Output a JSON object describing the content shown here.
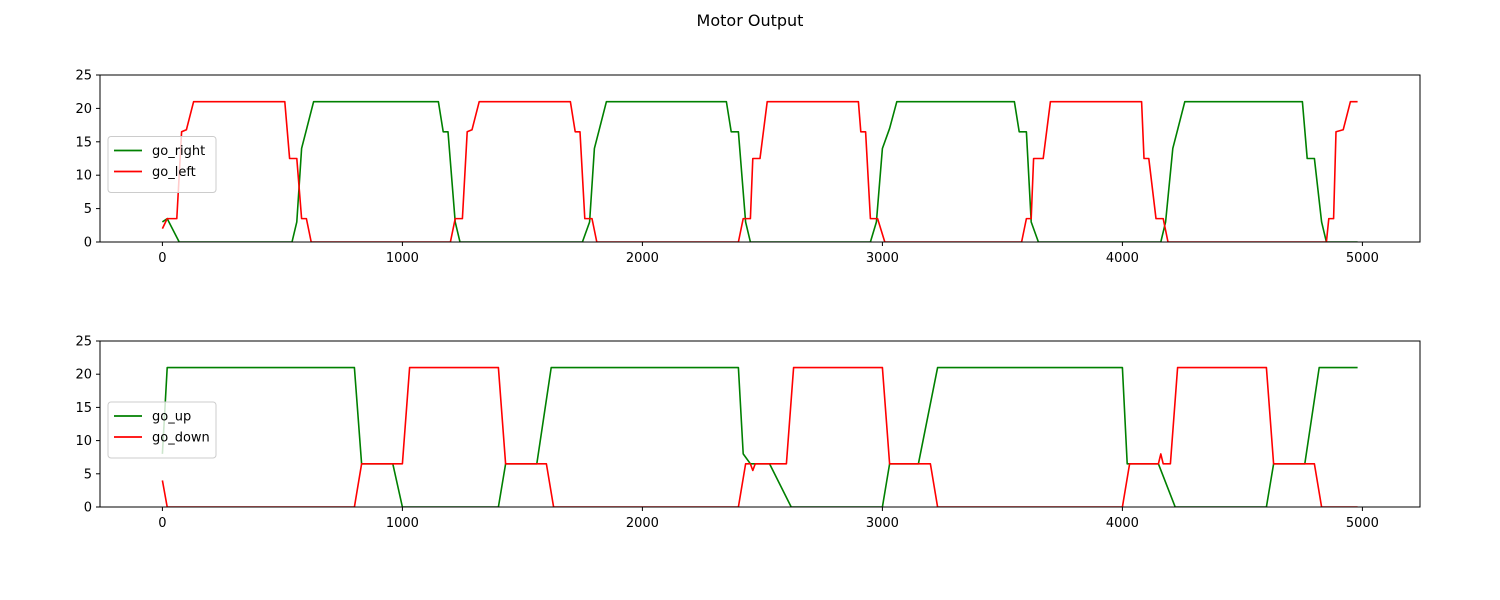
{
  "figure": {
    "title": "Motor Output"
  },
  "chart_data": [
    {
      "type": "line",
      "xlim": [
        -260,
        5240
      ],
      "ylim": [
        0,
        25
      ],
      "xticks": [
        0,
        1000,
        2000,
        3000,
        4000,
        5000
      ],
      "yticks": [
        0,
        5,
        10,
        15,
        20,
        25
      ],
      "legend_position": "center-left",
      "series": [
        {
          "name": "go_right",
          "color": "#008000",
          "points": [
            [
              0,
              3
            ],
            [
              20,
              3.5
            ],
            [
              70,
              0
            ],
            [
              540,
              0
            ],
            [
              560,
              3
            ],
            [
              580,
              14
            ],
            [
              600,
              16.8
            ],
            [
              630,
              21
            ],
            [
              1150,
              21
            ],
            [
              1170,
              16.5
            ],
            [
              1190,
              16.5
            ],
            [
              1220,
              3
            ],
            [
              1240,
              0
            ],
            [
              1750,
              0
            ],
            [
              1780,
              3
            ],
            [
              1800,
              14
            ],
            [
              1820,
              16.8
            ],
            [
              1850,
              21
            ],
            [
              2350,
              21
            ],
            [
              2370,
              16.5
            ],
            [
              2400,
              16.5
            ],
            [
              2430,
              3
            ],
            [
              2450,
              0
            ],
            [
              2950,
              0
            ],
            [
              2975,
              3
            ],
            [
              3000,
              14
            ],
            [
              3030,
              17
            ],
            [
              3060,
              21
            ],
            [
              3550,
              21
            ],
            [
              3570,
              16.5
            ],
            [
              3600,
              16.5
            ],
            [
              3620,
              3
            ],
            [
              3650,
              0
            ],
            [
              4160,
              0
            ],
            [
              4180,
              3
            ],
            [
              4210,
              14
            ],
            [
              4230,
              16.8
            ],
            [
              4260,
              21
            ],
            [
              4750,
              21
            ],
            [
              4770,
              12.5
            ],
            [
              4800,
              12.5
            ],
            [
              4830,
              3
            ],
            [
              4850,
              0
            ],
            [
              4980,
              0
            ]
          ]
        },
        {
          "name": "go_left",
          "color": "#ff0000",
          "points": [
            [
              0,
              2
            ],
            [
              20,
              3.5
            ],
            [
              60,
              3.5
            ],
            [
              80,
              16.5
            ],
            [
              100,
              16.8
            ],
            [
              130,
              21
            ],
            [
              510,
              21
            ],
            [
              530,
              12.5
            ],
            [
              560,
              12.5
            ],
            [
              580,
              3.5
            ],
            [
              600,
              3.5
            ],
            [
              620,
              0
            ],
            [
              1200,
              0
            ],
            [
              1220,
              3.5
            ],
            [
              1250,
              3.5
            ],
            [
              1270,
              16.5
            ],
            [
              1290,
              16.8
            ],
            [
              1320,
              21
            ],
            [
              1700,
              21
            ],
            [
              1720,
              16.5
            ],
            [
              1740,
              16.5
            ],
            [
              1760,
              3.5
            ],
            [
              1790,
              3.5
            ],
            [
              1810,
              0
            ],
            [
              2400,
              0
            ],
            [
              2420,
              3.5
            ],
            [
              2450,
              3.5
            ],
            [
              2460,
              12.5
            ],
            [
              2490,
              12.5
            ],
            [
              2520,
              21
            ],
            [
              2900,
              21
            ],
            [
              2910,
              16.5
            ],
            [
              2930,
              16.5
            ],
            [
              2950,
              3.5
            ],
            [
              2980,
              3.5
            ],
            [
              3010,
              0
            ],
            [
              3580,
              0
            ],
            [
              3600,
              3.5
            ],
            [
              3620,
              3.5
            ],
            [
              3630,
              12.5
            ],
            [
              3670,
              12.5
            ],
            [
              3700,
              21
            ],
            [
              4080,
              21
            ],
            [
              4090,
              12.5
            ],
            [
              4110,
              12.5
            ],
            [
              4140,
              3.5
            ],
            [
              4170,
              3.5
            ],
            [
              4190,
              0
            ],
            [
              4850,
              0
            ],
            [
              4860,
              3.5
            ],
            [
              4880,
              3.5
            ],
            [
              4890,
              16.5
            ],
            [
              4920,
              16.8
            ],
            [
              4950,
              21
            ],
            [
              4980,
              21
            ]
          ]
        }
      ]
    },
    {
      "type": "line",
      "xlim": [
        -260,
        5240
      ],
      "ylim": [
        0,
        25
      ],
      "xticks": [
        0,
        1000,
        2000,
        3000,
        4000,
        5000
      ],
      "yticks": [
        0,
        5,
        10,
        15,
        20,
        25
      ],
      "legend_position": "center-left",
      "series": [
        {
          "name": "go_up",
          "color": "#008000",
          "points": [
            [
              0,
              8
            ],
            [
              20,
              21
            ],
            [
              800,
              21
            ],
            [
              830,
              6.5
            ],
            [
              960,
              6.5
            ],
            [
              1000,
              0
            ],
            [
              1010,
              0
            ],
            [
              1400,
              0
            ],
            [
              1430,
              6.5
            ],
            [
              1560,
              6.5
            ],
            [
              1620,
              21
            ],
            [
              2400,
              21
            ],
            [
              2420,
              8
            ],
            [
              2450,
              6.5
            ],
            [
              2530,
              6.5
            ],
            [
              2620,
              0
            ],
            [
              3000,
              0
            ],
            [
              3030,
              6.5
            ],
            [
              3150,
              6.5
            ],
            [
              3230,
              21
            ],
            [
              4000,
              21
            ],
            [
              4020,
              6.5
            ],
            [
              4150,
              6.5
            ],
            [
              4220,
              0
            ],
            [
              4600,
              0
            ],
            [
              4630,
              6.5
            ],
            [
              4760,
              6.5
            ],
            [
              4820,
              21
            ],
            [
              4980,
              21
            ]
          ]
        },
        {
          "name": "go_down",
          "color": "#ff0000",
          "points": [
            [
              0,
              4
            ],
            [
              20,
              0
            ],
            [
              800,
              0
            ],
            [
              830,
              6.5
            ],
            [
              1000,
              6.5
            ],
            [
              1030,
              21
            ],
            [
              1400,
              21
            ],
            [
              1430,
              6.5
            ],
            [
              1600,
              6.5
            ],
            [
              1630,
              0
            ],
            [
              2400,
              0
            ],
            [
              2430,
              6.5
            ],
            [
              2450,
              6.5
            ],
            [
              2460,
              5.5
            ],
            [
              2470,
              6.5
            ],
            [
              2600,
              6.5
            ],
            [
              2630,
              21
            ],
            [
              3000,
              21
            ],
            [
              3030,
              6.5
            ],
            [
              3200,
              6.5
            ],
            [
              3230,
              0
            ],
            [
              4000,
              0
            ],
            [
              4030,
              6.5
            ],
            [
              4150,
              6.5
            ],
            [
              4160,
              8
            ],
            [
              4170,
              6.5
            ],
            [
              4200,
              6.5
            ],
            [
              4230,
              21
            ],
            [
              4600,
              21
            ],
            [
              4630,
              6.5
            ],
            [
              4800,
              6.5
            ],
            [
              4830,
              0
            ],
            [
              4980,
              0
            ]
          ]
        }
      ]
    }
  ]
}
